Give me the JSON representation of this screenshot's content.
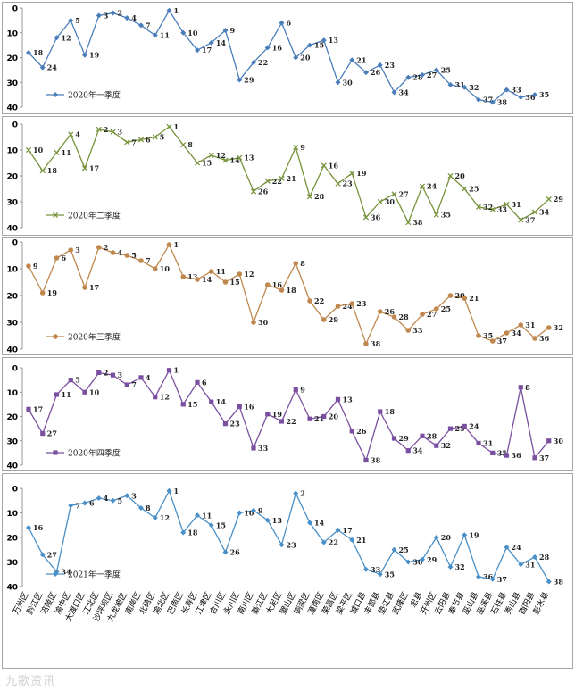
{
  "districts": [
    "万州区",
    "黔江区",
    "涪陵区",
    "渝中区",
    "大渡口区",
    "江北区",
    "沙坪坝区",
    "九龙坡区",
    "南岸区",
    "北碚区",
    "渝北区",
    "巴南区",
    "长寿区",
    "江津区",
    "合川区",
    "永川区",
    "南川区",
    "綦江区",
    "大足区",
    "璧山区",
    "铜梁区",
    "潼南区",
    "荣昌区",
    "梁平区",
    "城口县",
    "丰都县",
    "垫江县",
    "武隆区",
    "忠县",
    "开州区",
    "云阳县",
    "奉节县",
    "巫山县",
    "巫溪县",
    "石柱县",
    "秀山县",
    "酉阳县",
    "彭水县"
  ],
  "watermark": "九歌资讯",
  "chart_data": [
    {
      "type": "line",
      "title": "",
      "legend": "2020年一季度",
      "color": "#4a7ebb",
      "marker": "diamond",
      "ylim": [
        40,
        0
      ],
      "yticks": [
        0,
        10,
        20,
        30,
        40
      ],
      "values": [
        18,
        24,
        12,
        5,
        19,
        3,
        2,
        4,
        7,
        11,
        1,
        10,
        17,
        14,
        9,
        29,
        22,
        16,
        6,
        20,
        15,
        13,
        30,
        21,
        26,
        23,
        34,
        28,
        27,
        25,
        31,
        32,
        37,
        38,
        33,
        36,
        35,
        null
      ]
    },
    {
      "type": "line",
      "title": "",
      "legend": "2020年二季度",
      "color": "#77933c",
      "marker": "x",
      "ylim": [
        40,
        0
      ],
      "yticks": [
        0,
        10,
        20,
        30,
        40
      ],
      "values": [
        10,
        18,
        11,
        4,
        17,
        2,
        3,
        7,
        6,
        5,
        1,
        8,
        15,
        12,
        14,
        13,
        26,
        22,
        21,
        9,
        28,
        16,
        23,
        19,
        36,
        30,
        27,
        38,
        24,
        35,
        20,
        25,
        32,
        33,
        31,
        37,
        34,
        29
      ]
    },
    {
      "type": "line",
      "title": "",
      "legend": "2020年三季度",
      "color": "#c0884e",
      "marker": "circle",
      "ylim": [
        40,
        0
      ],
      "yticks": [
        0,
        10,
        20,
        30,
        40
      ],
      "values": [
        9,
        19,
        6,
        3,
        17,
        2,
        4,
        5,
        7,
        10,
        1,
        13,
        14,
        11,
        15,
        12,
        30,
        16,
        18,
        8,
        22,
        29,
        24,
        23,
        38,
        26,
        28,
        33,
        27,
        25,
        20,
        21,
        35,
        37,
        34,
        31,
        36,
        32
      ]
    },
    {
      "type": "line",
      "title": "",
      "legend": "2020年四季度",
      "color": "#7b4fa0",
      "marker": "square",
      "ylim": [
        40,
        0
      ],
      "yticks": [
        0,
        10,
        20,
        30,
        40
      ],
      "values": [
        17,
        27,
        11,
        5,
        10,
        2,
        3,
        7,
        4,
        12,
        1,
        15,
        6,
        14,
        23,
        16,
        33,
        19,
        22,
        9,
        21,
        20,
        13,
        26,
        38,
        18,
        29,
        34,
        28,
        32,
        25,
        24,
        31,
        35,
        36,
        8,
        37,
        30
      ]
    },
    {
      "type": "line",
      "title": "",
      "legend": "2021年一季度",
      "color": "#4a90c8",
      "marker": "diamond",
      "ylim": [
        40,
        0
      ],
      "yticks": [
        0,
        10,
        20,
        30,
        40
      ],
      "values": [
        16,
        27,
        34,
        7,
        6,
        4,
        5,
        3,
        8,
        12,
        1,
        18,
        11,
        15,
        26,
        10,
        9,
        13,
        23,
        2,
        14,
        22,
        17,
        21,
        33,
        35,
        25,
        30,
        29,
        20,
        32,
        19,
        36,
        37,
        24,
        31,
        28,
        38
      ]
    }
  ]
}
